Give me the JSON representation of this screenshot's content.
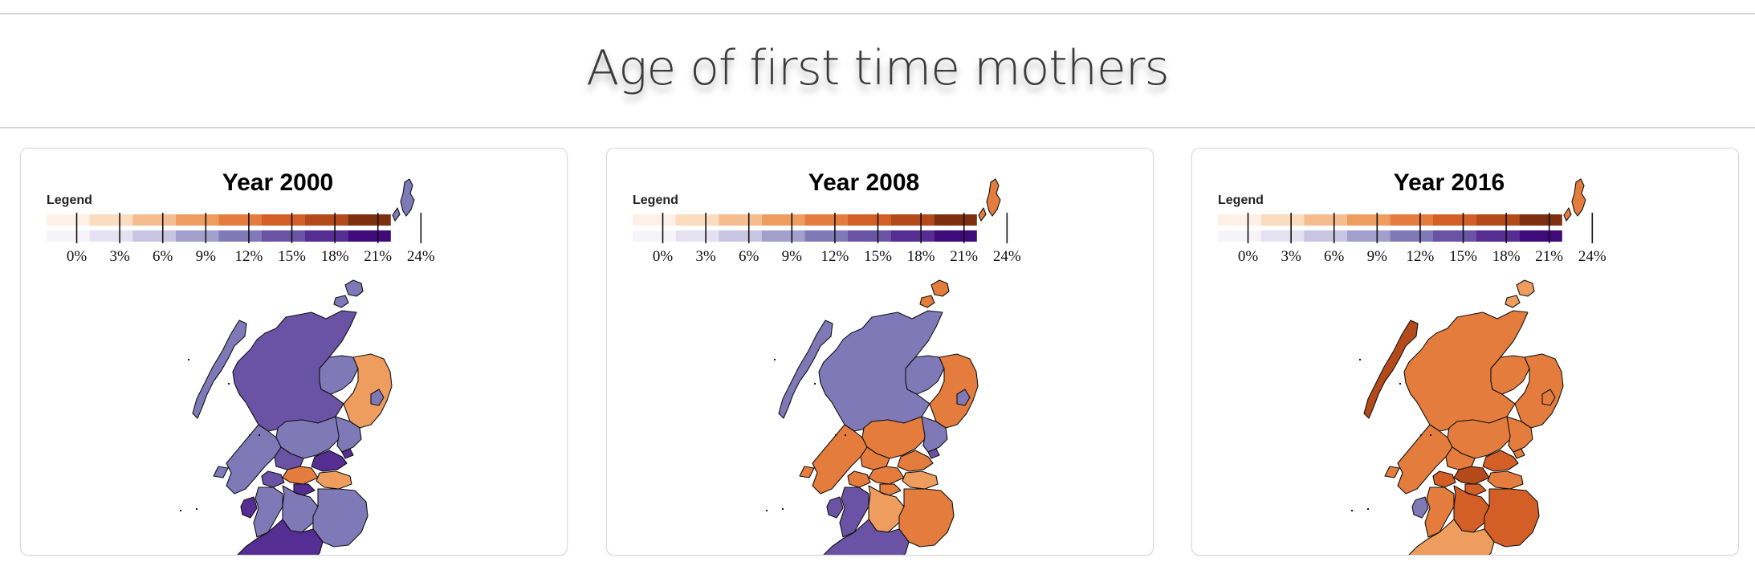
{
  "page": {
    "title": "Age of first time mothers"
  },
  "legend": {
    "title": "Legend",
    "ticks": [
      "0%",
      "3%",
      "6%",
      "9%",
      "12%",
      "15%",
      "18%",
      "21%",
      "24%"
    ],
    "orange_scale": [
      "#fdf0e6",
      "#fbdcbf",
      "#f5bd8e",
      "#ee9d5f",
      "#e47c3d",
      "#d35f27",
      "#b44a1a",
      "#7e2f10"
    ],
    "purple_scale": [
      "#f6f4f9",
      "#e4e2f0",
      "#c7c5e1",
      "#a29fcd",
      "#8079b8",
      "#6a53a4",
      "#562d92",
      "#3f0a7a"
    ]
  },
  "maps": [
    {
      "year_label": "Year 2000",
      "region_colors": {
        "shetland": "#8079b8",
        "orkney": "#8079b8",
        "western_isles": "#8079b8",
        "highland": "#6a53a4",
        "moray": "#8079b8",
        "aberdeenshire": "#ee9d5f",
        "aberdeen_city": "#8079b8",
        "perth_kinross": "#8079b8",
        "angus": "#8079b8",
        "dundee": "#562d92",
        "argyll_bute": "#8079b8",
        "stirling": "#6a53a4",
        "fife": "#562d92",
        "central_belt": "#e47c3d",
        "glasgow": "#6a53a4",
        "edinburgh": "#ee9d5f",
        "west_lothian": "#562d92",
        "arran": "#562d92",
        "ayrshire": "#8079b8",
        "lanarkshire": "#8079b8",
        "borders": "#8079b8",
        "dumfries_galloway": "#562d92"
      }
    },
    {
      "year_label": "Year 2008",
      "region_colors": {
        "shetland": "#e47c3d",
        "orkney": "#e47c3d",
        "western_isles": "#8079b8",
        "highland": "#8079b8",
        "moray": "#8079b8",
        "aberdeenshire": "#e47c3d",
        "aberdeen_city": "#8079b8",
        "perth_kinross": "#e47c3d",
        "angus": "#8079b8",
        "dundee": "#6a53a4",
        "argyll_bute": "#e47c3d",
        "stirling": "#e47c3d",
        "fife": "#e47c3d",
        "central_belt": "#e47c3d",
        "glasgow": "#e47c3d",
        "edinburgh": "#ee9d5f",
        "west_lothian": "#e47c3d",
        "arran": "#6a53a4",
        "ayrshire": "#6a53a4",
        "lanarkshire": "#ee9d5f",
        "borders": "#e47c3d",
        "dumfries_galloway": "#6a53a4"
      }
    },
    {
      "year_label": "Year 2016",
      "region_colors": {
        "shetland": "#e47c3d",
        "orkney": "#ee9d5f",
        "western_isles": "#b44a1a",
        "highland": "#e47c3d",
        "moray": "#e47c3d",
        "aberdeenshire": "#e47c3d",
        "aberdeen_city": "#e47c3d",
        "perth_kinross": "#e47c3d",
        "angus": "#e47c3d",
        "dundee": "#e47c3d",
        "argyll_bute": "#e47c3d",
        "stirling": "#e47c3d",
        "fife": "#d35f27",
        "central_belt": "#b44a1a",
        "glasgow": "#d35f27",
        "edinburgh": "#e47c3d",
        "west_lothian": "#d35f27",
        "arran": "#8079b8",
        "ayrshire": "#e47c3d",
        "lanarkshire": "#d35f27",
        "borders": "#d35f27",
        "dumfries_galloway": "#ee9d5f"
      }
    }
  ]
}
